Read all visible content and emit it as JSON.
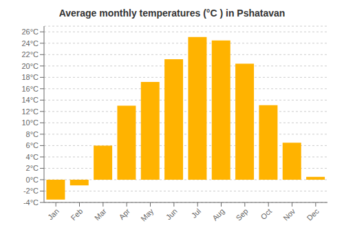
{
  "chart_data": {
    "type": "bar",
    "title": "Average monthly temperatures (°C ) in Pshatavan",
    "categories": [
      "Jan",
      "Feb",
      "Mar",
      "Apr",
      "May",
      "Jun",
      "Jul",
      "Aug",
      "Sep",
      "Oct",
      "Nov",
      "Dec"
    ],
    "values": [
      -3.5,
      -1.0,
      6.0,
      13.0,
      17.2,
      21.2,
      25.1,
      24.5,
      20.4,
      13.1,
      6.5,
      0.5
    ],
    "color": "#FFB300",
    "ylim": [
      -4,
      27
    ],
    "yticks": [
      {
        "value": -4,
        "label": "-4°C"
      },
      {
        "value": -2,
        "label": "-2°C"
      },
      {
        "value": 0,
        "label": "0°C"
      },
      {
        "value": 2,
        "label": "2°C"
      },
      {
        "value": 4,
        "label": "4°C"
      },
      {
        "value": 6,
        "label": "6°C"
      },
      {
        "value": 8,
        "label": "8°C"
      },
      {
        "value": 10,
        "label": "10°C"
      },
      {
        "value": 12,
        "label": "12°C"
      },
      {
        "value": 14,
        "label": "14°C"
      },
      {
        "value": 16,
        "label": "16°C"
      },
      {
        "value": 18,
        "label": "18°C"
      },
      {
        "value": 20,
        "label": "20°C"
      },
      {
        "value": 22,
        "label": "22°C"
      },
      {
        "value": 24,
        "label": "24°C"
      },
      {
        "value": 26,
        "label": "26°C"
      }
    ],
    "grid": true
  }
}
